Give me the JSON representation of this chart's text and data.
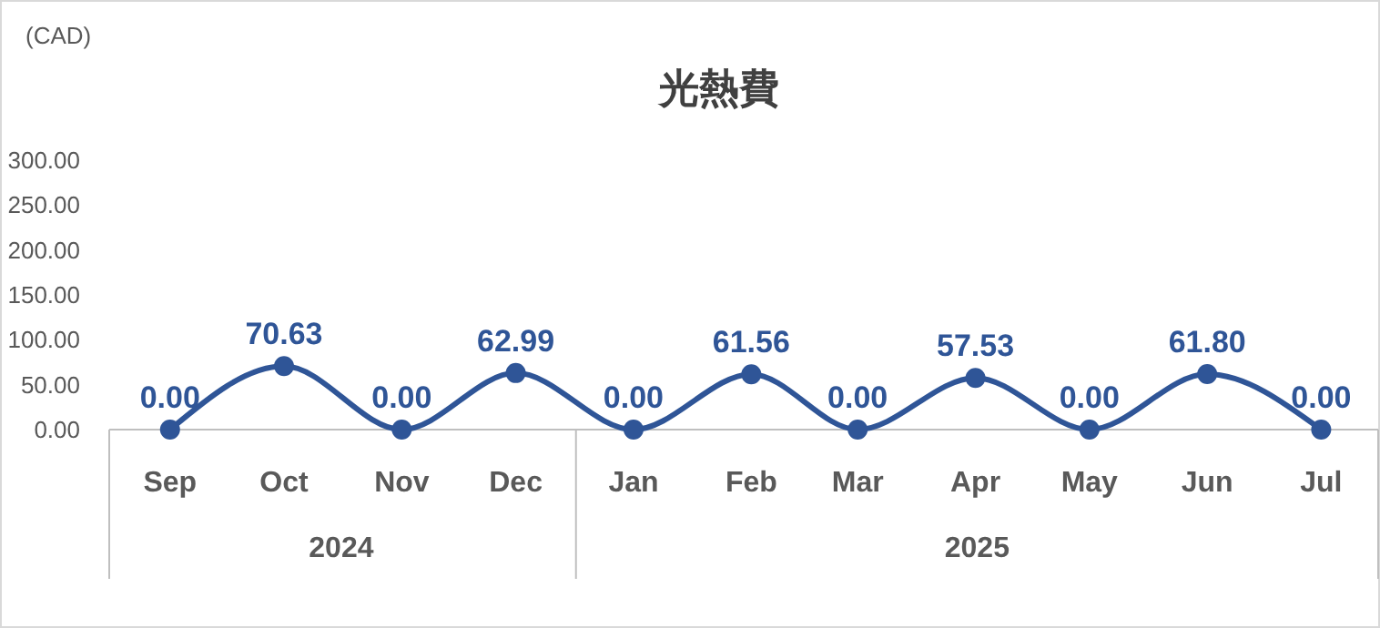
{
  "chart_data": {
    "type": "line",
    "title": "光熱費",
    "ylabel": "(CAD)",
    "x": [
      "2024-09",
      "2024-10",
      "2024-11",
      "2024-12",
      "2025-01",
      "2025-02",
      "2025-03",
      "2025-04",
      "2025-05",
      "2025-06",
      "2025-07"
    ],
    "xlim": [
      "2024-08-16",
      "2025-07-16"
    ],
    "xticks": [
      {
        "value": "2024-09",
        "label": "Sep"
      },
      {
        "value": "2024-10",
        "label": "Oct"
      },
      {
        "value": "2024-11",
        "label": "Nov"
      },
      {
        "value": "2024-12",
        "label": "Dec"
      },
      {
        "value": "2025-01",
        "label": "Jan"
      },
      {
        "value": "2025-02",
        "label": "Feb"
      },
      {
        "value": "2025-03",
        "label": "Mar"
      },
      {
        "value": "2025-04",
        "label": "Apr"
      },
      {
        "value": "2025-05",
        "label": "May"
      },
      {
        "value": "2025-06",
        "label": "Jun"
      },
      {
        "value": "2025-07",
        "label": "Jul"
      }
    ],
    "series": [
      {
        "color": "#2f5597",
        "values": [
          0,
          70.63,
          0,
          62.99,
          0,
          61.56,
          0,
          57.53,
          0,
          61.8,
          0
        ],
        "value_labels": [
          "0.00",
          "70.63",
          "0.00",
          "62.99",
          "0.00",
          "61.56",
          "0.00",
          "57.53",
          "0.00",
          "61.80",
          "0.00"
        ]
      }
    ],
    "ylim": [
      0,
      300
    ],
    "yticks": [
      {
        "value": 0,
        "label": "0.00"
      },
      {
        "value": 50,
        "label": "50.00"
      },
      {
        "value": 100,
        "label": "100.00"
      },
      {
        "value": 150,
        "label": "150.00"
      },
      {
        "value": 200,
        "label": "200.00"
      },
      {
        "value": 250,
        "label": "250.00"
      },
      {
        "value": 300,
        "label": "300.00"
      }
    ],
    "annotations": [
      "2024",
      "2025"
    ],
    "grid": false,
    "marker": "circle",
    "line_style": "solid"
  }
}
